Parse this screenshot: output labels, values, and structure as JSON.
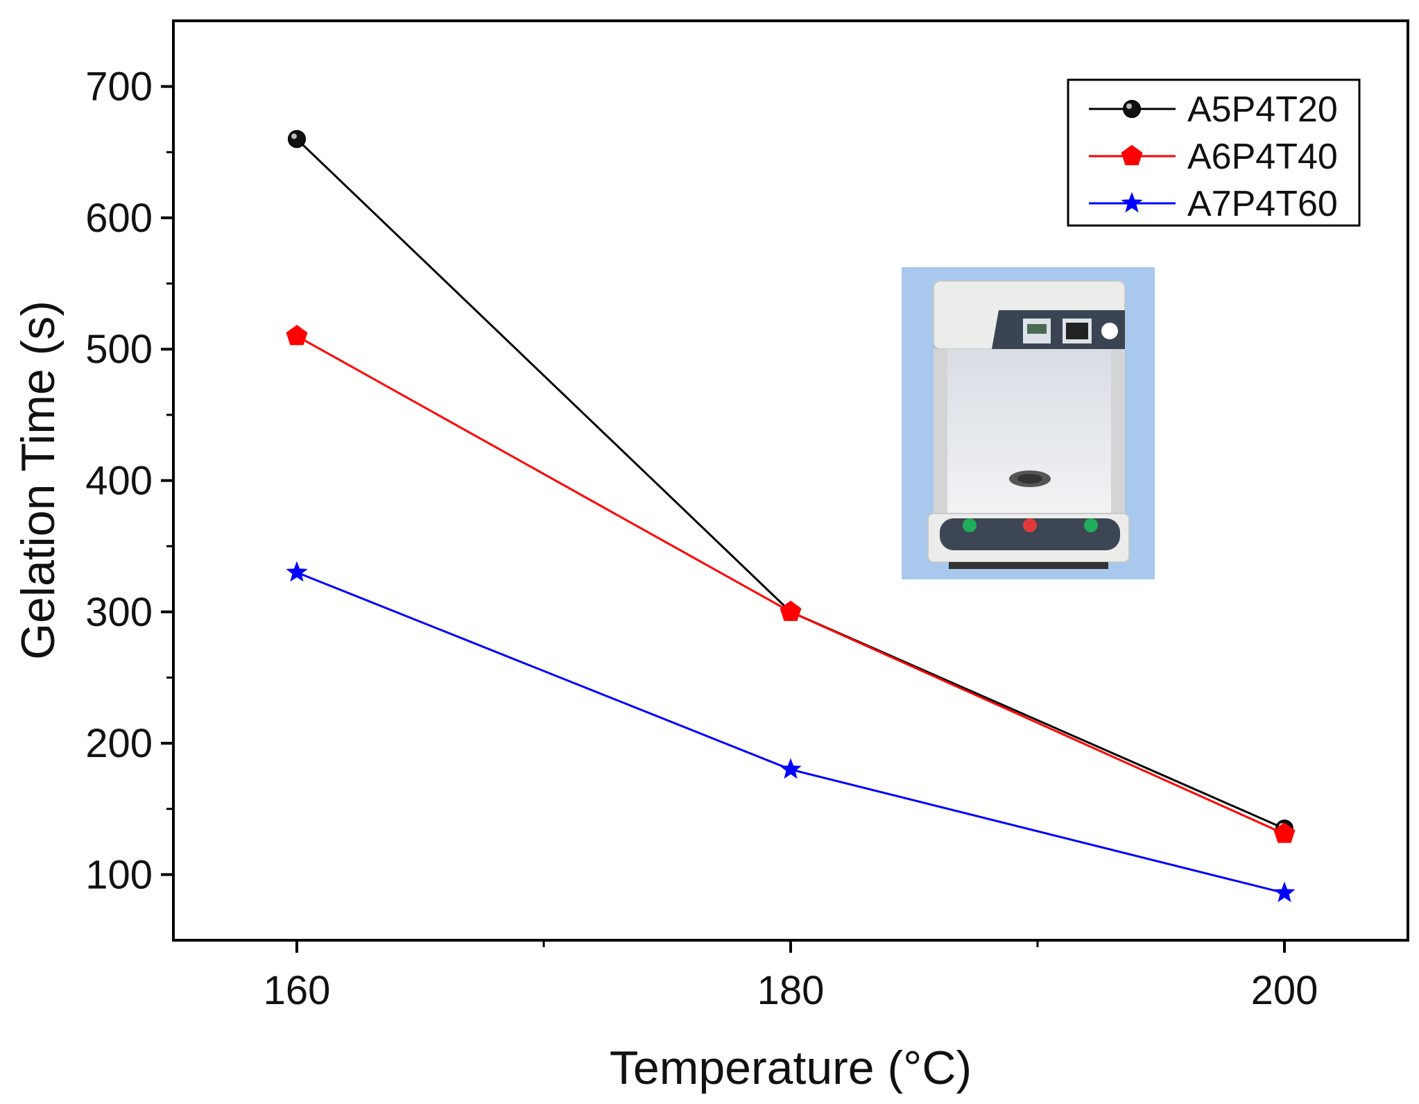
{
  "chart_data": {
    "type": "line",
    "xlabel": "Temperature (°C)",
    "ylabel": "Gelation Time (s)",
    "x": [
      160,
      180,
      200
    ],
    "x_ticks": [
      "160",
      "180",
      "200"
    ],
    "xlim": [
      155,
      205
    ],
    "y_ticks": [
      "100",
      "200",
      "300",
      "400",
      "500",
      "600",
      "700"
    ],
    "ylim": [
      50,
      750
    ],
    "grid": false,
    "legend_position": "top-right",
    "series": [
      {
        "name": "A5P4T20",
        "color": "#000000",
        "marker": "circle",
        "values": [
          660,
          300,
          135
        ]
      },
      {
        "name": "A6P4T40",
        "color": "#ff0000",
        "marker": "pentagon",
        "values": [
          510,
          300,
          131
        ]
      },
      {
        "name": "A7P4T60",
        "color": "#0000ff",
        "marker": "star",
        "values": [
          330,
          180,
          86
        ]
      }
    ],
    "inset": {
      "description": "photo of gelation time tester apparatus"
    }
  }
}
